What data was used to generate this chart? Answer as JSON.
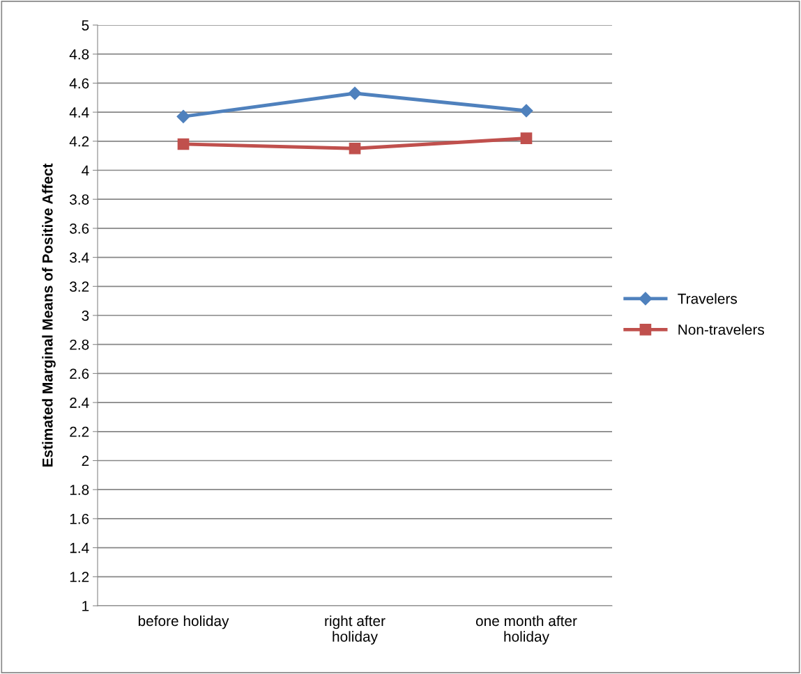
{
  "chart_data": {
    "type": "line",
    "ylabel": "Estimated Marginal Means of Positive Affect",
    "categories": [
      "before holiday",
      "right after holiday",
      "one month after holiday"
    ],
    "series": [
      {
        "name": "Travelers",
        "color": "#4f81bd",
        "marker": "diamond",
        "values": [
          4.37,
          4.53,
          4.41
        ]
      },
      {
        "name": "Non-travelers",
        "color": "#c0504d",
        "marker": "square",
        "values": [
          4.18,
          4.15,
          4.22
        ]
      }
    ],
    "ylim": [
      1,
      5
    ],
    "yticks": [
      1,
      1.2,
      1.4,
      1.6,
      1.8,
      2,
      2.2,
      2.4,
      2.6,
      2.8,
      3,
      3.2,
      3.4,
      3.6,
      3.8,
      4,
      4.2,
      4.4,
      4.6,
      4.8,
      5
    ],
    "grid": "y",
    "legend": "right"
  }
}
